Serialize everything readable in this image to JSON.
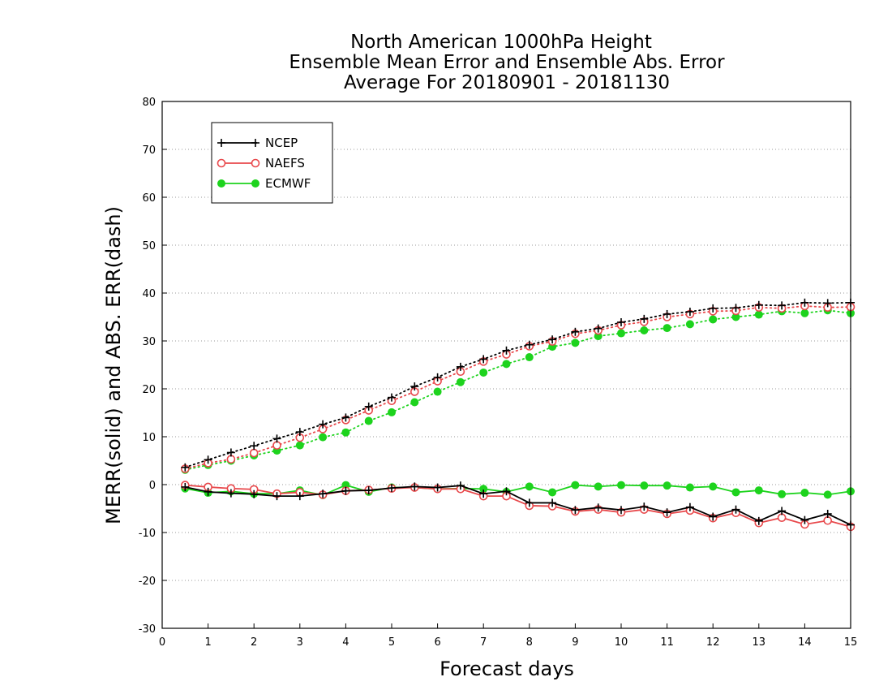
{
  "chart_data": {
    "type": "line",
    "title_lines": [
      "North American 1000hPa Height",
      "Ensemble Mean Error and Ensemble Abs. Error",
      "Average For 20180901 - 20181130"
    ],
    "xlabel": "Forecast days",
    "ylabel": "MERR(solid) and ABS. ERR(dash)",
    "xlim": [
      0,
      15
    ],
    "ylim": [
      -30,
      80
    ],
    "x_ticks": [
      0,
      1,
      2,
      3,
      4,
      5,
      6,
      7,
      8,
      9,
      10,
      11,
      12,
      13,
      14,
      15
    ],
    "y_ticks": [
      -30,
      -20,
      -10,
      0,
      10,
      20,
      30,
      40,
      50,
      60,
      70,
      80
    ],
    "grid": "horizontal dotted",
    "legend_position": "top-left",
    "x": [
      0.5,
      1,
      1.5,
      2,
      2.5,
      3,
      3.5,
      4,
      4.5,
      5,
      5.5,
      6,
      6.5,
      7,
      7.5,
      8,
      8.5,
      9,
      9.5,
      10,
      10.5,
      11,
      11.5,
      12,
      12.5,
      13,
      13.5,
      14,
      14.5,
      15
    ],
    "series": [
      {
        "name": "NCEP",
        "color": "#000000",
        "marker": "plus",
        "merr": [
          -0.5,
          -1.5,
          -1.8,
          -2.0,
          -2.4,
          -2.4,
          -1.9,
          -1.3,
          -1.2,
          -0.7,
          -0.4,
          -0.6,
          -0.2,
          -1.9,
          -1.4,
          -3.8,
          -3.8,
          -5.3,
          -4.8,
          -5.3,
          -4.6,
          -5.8,
          -4.7,
          -6.7,
          -5.2,
          -7.6,
          -5.5,
          -7.4,
          -6.1,
          -8.4
        ],
        "abs_err": [
          3.6,
          5.2,
          6.7,
          8.1,
          9.6,
          11.0,
          12.6,
          14.0,
          16.3,
          18.2,
          20.5,
          22.4,
          24.6,
          26.2,
          28.0,
          29.2,
          30.3,
          31.9,
          32.6,
          33.9,
          34.6,
          35.6,
          36.1,
          36.8,
          36.9,
          37.5,
          37.4,
          38.0,
          37.9,
          38.0
        ]
      },
      {
        "name": "NAEFS",
        "color": "#e8484b",
        "marker": "circle",
        "merr": [
          -0.1,
          -0.5,
          -0.8,
          -1.0,
          -1.9,
          -1.6,
          -2.1,
          -1.3,
          -1.1,
          -0.8,
          -0.6,
          -0.9,
          -0.9,
          -2.4,
          -2.4,
          -4.4,
          -4.5,
          -5.6,
          -5.2,
          -5.8,
          -5.2,
          -6.1,
          -5.4,
          -7.0,
          -5.9,
          -8.0,
          -6.9,
          -8.3,
          -7.5,
          -8.8
        ],
        "abs_err": [
          3.3,
          4.5,
          5.3,
          6.6,
          8.2,
          9.8,
          11.6,
          13.5,
          15.5,
          17.5,
          19.4,
          21.6,
          23.6,
          25.7,
          27.2,
          28.9,
          29.9,
          31.5,
          32.2,
          33.3,
          34.0,
          35.0,
          35.6,
          36.2,
          36.3,
          37.0,
          36.8,
          37.3,
          37.0,
          37.1
        ]
      },
      {
        "name": "ECMWF",
        "color": "#1dd31d",
        "marker": "dot",
        "merr": [
          -0.8,
          -1.7,
          -1.4,
          -1.9,
          -1.9,
          -1.2,
          -2.2,
          -0.1,
          -1.5,
          -0.6,
          -0.6,
          -0.9,
          -0.8,
          -0.9,
          -1.5,
          -0.4,
          -1.6,
          -0.1,
          -0.4,
          -0.1,
          -0.2,
          -0.2,
          -0.6,
          -0.4,
          -1.6,
          -1.2,
          -2.0,
          -1.7,
          -2.1,
          -1.4
        ],
        "abs_err": [
          3.1,
          4.1,
          5.0,
          6.1,
          7.1,
          8.2,
          9.9,
          10.9,
          13.3,
          15.1,
          17.2,
          19.4,
          21.4,
          23.4,
          25.2,
          26.6,
          28.8,
          29.6,
          31.0,
          31.6,
          32.2,
          32.7,
          33.5,
          34.5,
          35.0,
          35.5,
          36.2,
          35.8,
          36.4,
          35.8
        ]
      }
    ]
  }
}
